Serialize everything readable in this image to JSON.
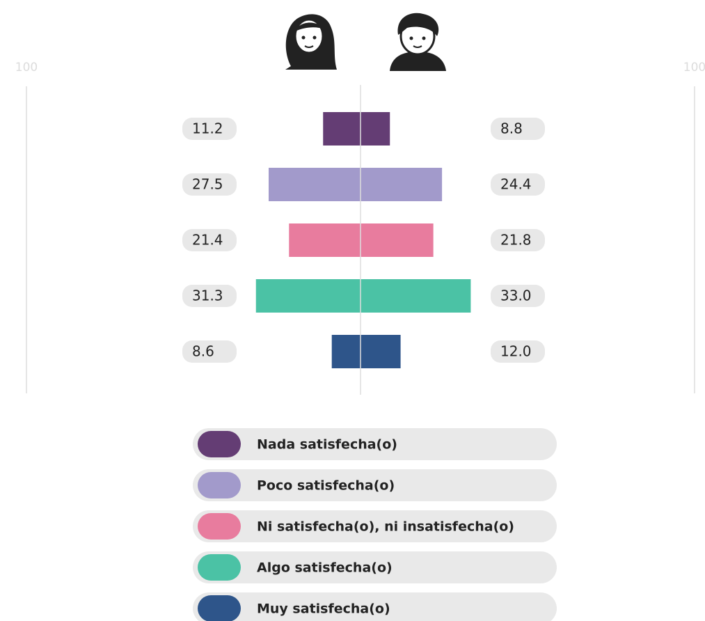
{
  "chart_data": {
    "type": "butterfly",
    "categories": [
      "Nada satisfecha(o)",
      "Poco satisfecha(o)",
      "Ni satisfecha(o), ni insatisfecha(o)",
      "Algo satisfecha(o)",
      "Muy satisfecha(o)"
    ],
    "colors": [
      "#643d74",
      "#a29acb",
      "#e87c9e",
      "#4bc2a5",
      "#2e558a"
    ],
    "series": [
      {
        "side": "left",
        "values": [
          11.2,
          27.5,
          21.4,
          31.3,
          8.6
        ],
        "value_labels": [
          "11.2",
          "27.5",
          "21.4",
          "31.3",
          "8.6"
        ]
      },
      {
        "side": "right",
        "values": [
          8.8,
          24.4,
          21.8,
          33.0,
          12.0
        ],
        "value_labels": [
          "8.8",
          "24.4",
          "21.8",
          "33.0",
          "12.0"
        ]
      }
    ],
    "xlim": [
      0,
      100
    ],
    "xticks": [
      100
    ]
  }
}
